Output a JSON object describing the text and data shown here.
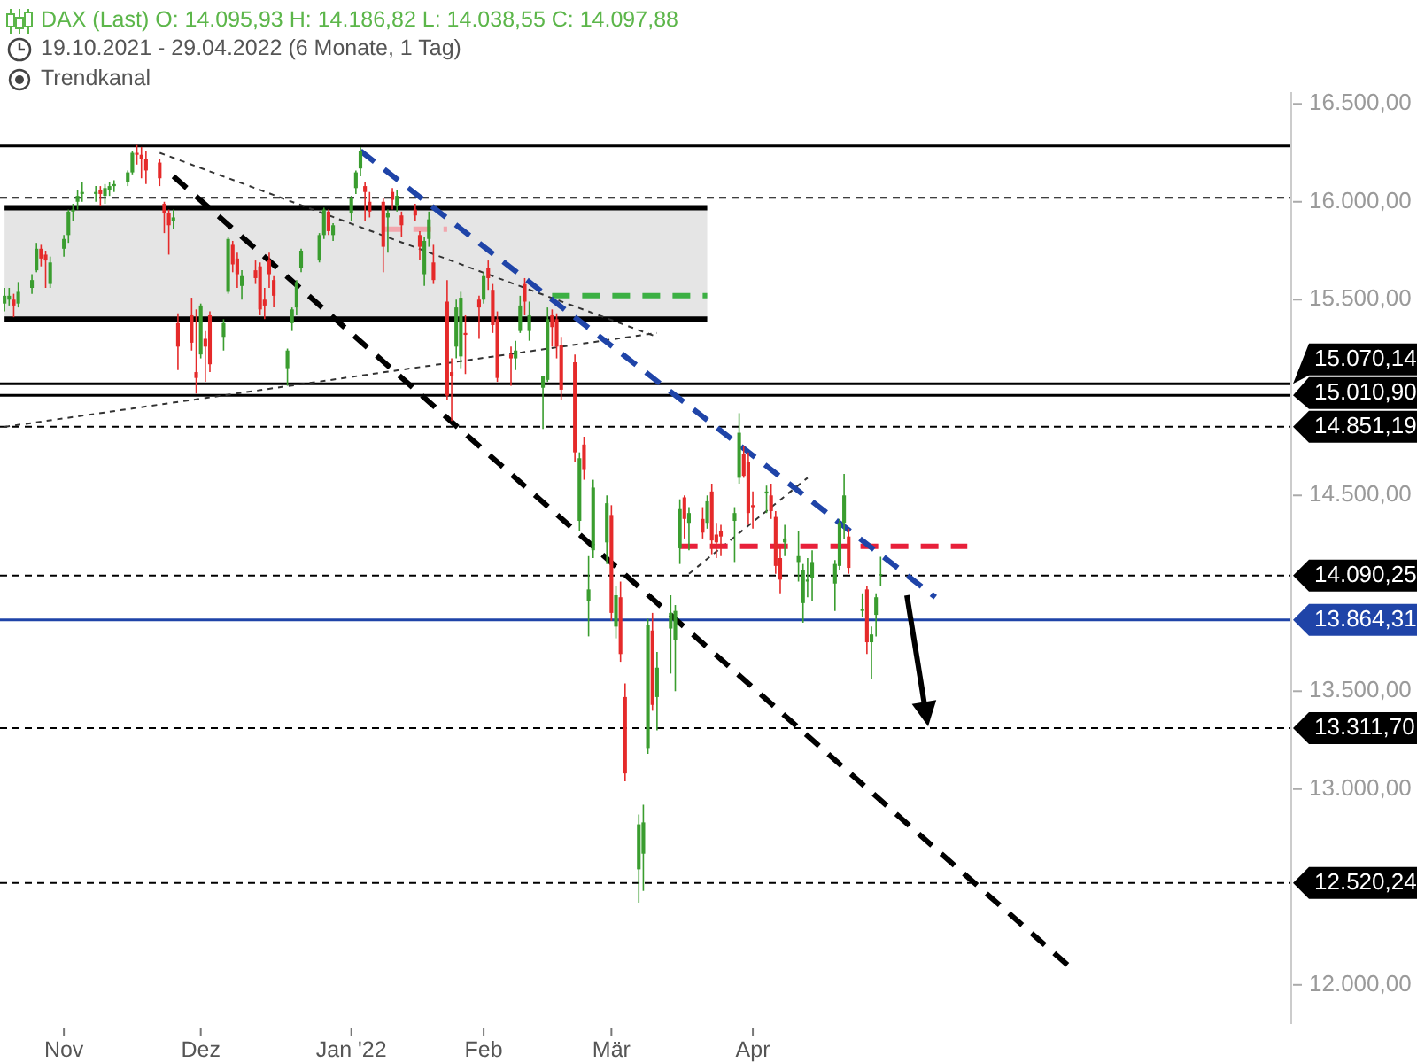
{
  "chart_data": {
    "type": "candlestick",
    "title": "DAX (Last) O: 14.095,93 H: 14.186,82 L: 14.038,55 C: 14.097,88",
    "subtitle": "19.10.2021 - 29.04.2022 (6 Monate, 1 Tag)",
    "annotations": [
      "Trendkanal"
    ],
    "x": [
      "2021-10-19",
      "2021-10-20",
      "2021-10-21",
      "2021-10-22",
      "2021-10-25",
      "2021-10-26",
      "2021-10-27",
      "2021-10-28",
      "2021-10-29",
      "2021-11-01",
      "2021-11-02",
      "2021-11-03",
      "2021-11-04",
      "2021-11-05",
      "2021-11-08",
      "2021-11-09",
      "2021-11-10",
      "2021-11-11",
      "2021-11-12",
      "2021-11-15",
      "2021-11-16",
      "2021-11-17",
      "2021-11-18",
      "2021-11-19",
      "2021-11-22",
      "2021-11-23",
      "2021-11-24",
      "2021-11-25",
      "2021-11-26",
      "2021-11-29",
      "2021-11-30",
      "2021-12-01",
      "2021-12-02",
      "2021-12-03",
      "2021-12-06",
      "2021-12-07",
      "2021-12-08",
      "2021-12-09",
      "2021-12-10",
      "2021-12-13",
      "2021-12-14",
      "2021-12-15",
      "2021-12-16",
      "2021-12-17",
      "2021-12-20",
      "2021-12-21",
      "2021-12-22",
      "2021-12-23",
      "2021-12-27",
      "2021-12-28",
      "2021-12-29",
      "2021-12-30",
      "2022-01-03",
      "2022-01-04",
      "2022-01-05",
      "2022-01-06",
      "2022-01-07",
      "2022-01-10",
      "2022-01-11",
      "2022-01-12",
      "2022-01-13",
      "2022-01-14",
      "2022-01-17",
      "2022-01-18",
      "2022-01-19",
      "2022-01-20",
      "2022-01-21",
      "2022-01-24",
      "2022-01-25",
      "2022-01-26",
      "2022-01-27",
      "2022-01-28",
      "2022-01-31",
      "2022-02-01",
      "2022-02-02",
      "2022-02-03",
      "2022-02-04",
      "2022-02-07",
      "2022-02-08",
      "2022-02-09",
      "2022-02-10",
      "2022-02-11",
      "2022-02-14",
      "2022-02-15",
      "2022-02-16",
      "2022-02-17",
      "2022-02-18",
      "2022-02-21",
      "2022-02-22",
      "2022-02-23",
      "2022-02-24",
      "2022-02-25",
      "2022-02-28",
      "2022-03-01",
      "2022-03-02",
      "2022-03-03",
      "2022-03-04",
      "2022-03-07",
      "2022-03-08",
      "2022-03-09",
      "2022-03-10",
      "2022-03-11",
      "2022-03-14",
      "2022-03-15",
      "2022-03-16",
      "2022-03-17",
      "2022-03-18",
      "2022-03-21",
      "2022-03-22",
      "2022-03-23",
      "2022-03-24",
      "2022-03-25",
      "2022-03-28",
      "2022-03-29",
      "2022-03-30",
      "2022-03-31",
      "2022-04-01",
      "2022-04-04",
      "2022-04-05",
      "2022-04-06",
      "2022-04-07",
      "2022-04-08",
      "2022-04-11",
      "2022-04-12",
      "2022-04-13",
      "2022-04-14",
      "2022-04-19",
      "2022-04-20",
      "2022-04-21",
      "2022-04-22",
      "2022-04-25",
      "2022-04-26",
      "2022-04-27",
      "2022-04-28",
      "2022-04-29"
    ],
    "ohlc": [
      [
        15480,
        15560,
        15440,
        15520
      ],
      [
        15500,
        15560,
        15470,
        15520
      ],
      [
        15500,
        15530,
        15410,
        15470
      ],
      [
        15480,
        15590,
        15460,
        15540
      ],
      [
        15560,
        15630,
        15530,
        15600
      ],
      [
        15650,
        15790,
        15640,
        15760
      ],
      [
        15760,
        15780,
        15670,
        15710
      ],
      [
        15730,
        15750,
        15560,
        15700
      ],
      [
        15580,
        15720,
        15560,
        15690
      ],
      [
        15760,
        15830,
        15720,
        15810
      ],
      [
        15830,
        15960,
        15790,
        15950
      ],
      [
        15950,
        15990,
        15900,
        15960
      ],
      [
        16000,
        16060,
        15960,
        16030
      ],
      [
        16040,
        16100,
        16000,
        16050
      ],
      [
        16040,
        16080,
        16000,
        16050
      ],
      [
        16060,
        16080,
        15980,
        16040
      ],
      [
        16030,
        16090,
        15990,
        16070
      ],
      [
        16060,
        16100,
        16030,
        16080
      ],
      [
        16080,
        16110,
        16050,
        16090
      ],
      [
        16100,
        16160,
        16080,
        16150
      ],
      [
        16150,
        16260,
        16140,
        16250
      ],
      [
        16250,
        16290,
        16190,
        16240
      ],
      [
        16240,
        16280,
        16120,
        16220
      ],
      [
        16220,
        16260,
        16090,
        16160
      ],
      [
        16200,
        16220,
        16080,
        16120
      ],
      [
        15990,
        16000,
        15840,
        15940
      ],
      [
        15940,
        15960,
        15730,
        15880
      ],
      [
        15900,
        15960,
        15860,
        15920
      ],
      [
        15380,
        15430,
        15140,
        15260
      ],
      [
        15420,
        15510,
        15240,
        15280
      ],
      [
        15130,
        15450,
        15020,
        15100
      ],
      [
        15220,
        15480,
        15200,
        15470
      ],
      [
        15300,
        15340,
        15080,
        15260
      ],
      [
        15420,
        15440,
        15130,
        15170
      ],
      [
        15310,
        15400,
        15240,
        15380
      ],
      [
        15540,
        15820,
        15530,
        15810
      ],
      [
        15780,
        15800,
        15640,
        15680
      ],
      [
        15710,
        15740,
        15560,
        15630
      ],
      [
        15570,
        15650,
        15500,
        15620
      ],
      [
        15650,
        15700,
        15580,
        15610
      ],
      [
        15670,
        15690,
        15420,
        15450
      ],
      [
        15500,
        15560,
        15400,
        15470
      ],
      [
        15700,
        15740,
        15560,
        15630
      ],
      [
        15600,
        15620,
        15460,
        15520
      ],
      [
        15150,
        15250,
        15060,
        15240
      ],
      [
        15380,
        15460,
        15340,
        15450
      ],
      [
        15460,
        15600,
        15420,
        15590
      ],
      [
        15660,
        15760,
        15640,
        15750
      ],
      [
        15700,
        15840,
        15690,
        15830
      ],
      [
        15830,
        15970,
        15810,
        15960
      ],
      [
        15950,
        15960,
        15830,
        15850
      ],
      [
        15830,
        15890,
        15800,
        15880
      ],
      [
        15940,
        16030,
        15900,
        16020
      ],
      [
        16070,
        16160,
        16040,
        16150
      ],
      [
        16170,
        16280,
        16130,
        16260
      ],
      [
        16080,
        16100,
        15900,
        16050
      ],
      [
        16000,
        16050,
        15920,
        15950
      ],
      [
        16000,
        16020,
        15640,
        15770
      ],
      [
        15920,
        15960,
        15740,
        15940
      ],
      [
        16050,
        16070,
        15960,
        16010
      ],
      [
        15980,
        16060,
        15950,
        16030
      ],
      [
        15930,
        15950,
        15820,
        15880
      ],
      [
        15960,
        15990,
        15900,
        15930
      ],
      [
        15830,
        15850,
        15700,
        15770
      ],
      [
        15630,
        15820,
        15570,
        15800
      ],
      [
        15810,
        15950,
        15770,
        15910
      ],
      [
        15690,
        15780,
        15580,
        15600
      ],
      [
        15490,
        15600,
        14990,
        15010
      ],
      [
        15130,
        15200,
        14880,
        15110
      ],
      [
        15260,
        15500,
        15200,
        15460
      ],
      [
        15210,
        15540,
        15150,
        15510
      ],
      [
        15330,
        15420,
        15120,
        15320
      ],
      [
        15500,
        15520,
        15300,
        15460
      ],
      [
        15500,
        15640,
        15480,
        15620
      ],
      [
        15660,
        15700,
        15550,
        15610
      ],
      [
        15550,
        15580,
        15330,
        15370
      ],
      [
        15400,
        15440,
        15080,
        15100
      ],
      [
        15220,
        15260,
        15060,
        15200
      ],
      [
        15200,
        15290,
        15140,
        15240
      ],
      [
        15340,
        15520,
        15330,
        15470
      ],
      [
        15580,
        15610,
        15420,
        15490
      ],
      [
        15340,
        15490,
        15290,
        15420
      ],
      [
        15050,
        15110,
        14840,
        15110
      ],
      [
        15090,
        15460,
        15080,
        15400
      ],
      [
        15420,
        15450,
        15260,
        15360
      ],
      [
        15400,
        15430,
        15200,
        15260
      ],
      [
        15270,
        15310,
        14990,
        15040
      ],
      [
        15180,
        15220,
        14670,
        14720
      ],
      [
        14370,
        14720,
        14320,
        14690
      ],
      [
        14760,
        14800,
        14580,
        14630
      ],
      [
        13960,
        14190,
        13780,
        14020
      ],
      [
        14220,
        14580,
        14180,
        14540
      ],
      [
        14260,
        14500,
        14150,
        14460
      ],
      [
        14400,
        14450,
        13860,
        13900
      ],
      [
        13830,
        14040,
        13770,
        13990
      ],
      [
        13980,
        14060,
        13650,
        13690
      ],
      [
        13470,
        13540,
        13040,
        13080
      ],
      [
        12590,
        12870,
        12420,
        12820
      ],
      [
        12670,
        12920,
        12480,
        12830
      ],
      [
        13210,
        13870,
        13180,
        13840
      ],
      [
        13810,
        13900,
        13400,
        13430
      ],
      [
        13470,
        13700,
        13300,
        13620
      ],
      [
        13820,
        13990,
        13590,
        13900
      ],
      [
        13760,
        13940,
        13500,
        13910
      ],
      [
        14230,
        14480,
        14150,
        14430
      ],
      [
        14490,
        14500,
        14280,
        14380
      ],
      [
        14360,
        14440,
        14220,
        14410
      ],
      [
        14380,
        14440,
        14280,
        14310
      ],
      [
        14360,
        14500,
        14330,
        14470
      ],
      [
        14520,
        14560,
        14200,
        14270
      ],
      [
        14300,
        14360,
        14180,
        14260
      ],
      [
        14320,
        14350,
        14190,
        14290
      ],
      [
        14370,
        14440,
        14160,
        14410
      ],
      [
        14590,
        14920,
        14560,
        14820
      ],
      [
        14710,
        14750,
        14590,
        14600
      ],
      [
        14670,
        14720,
        14350,
        14410
      ],
      [
        14450,
        14520,
        14330,
        14440
      ],
      [
        14510,
        14550,
        14410,
        14520
      ],
      [
        14500,
        14560,
        14380,
        14420
      ],
      [
        14390,
        14420,
        14100,
        14140
      ],
      [
        14180,
        14240,
        14000,
        14070
      ],
      [
        14260,
        14350,
        14190,
        14280
      ],
      [
        14160,
        14320,
        14060,
        14190
      ],
      [
        13950,
        14150,
        13850,
        14120
      ],
      [
        14060,
        14180,
        13980,
        14070
      ],
      [
        14080,
        14220,
        13960,
        14160
      ],
      [
        14050,
        14170,
        13910,
        14150
      ],
      [
        14140,
        14380,
        14120,
        14360
      ],
      [
        14360,
        14610,
        14280,
        14500
      ],
      [
        14290,
        14330,
        14100,
        14130
      ],
      [
        13910,
        14000,
        13880,
        13920
      ],
      [
        14020,
        14040,
        13690,
        13750
      ],
      [
        13750,
        13830,
        13560,
        13790
      ],
      [
        13890,
        14000,
        13780,
        13980
      ],
      [
        14095.93,
        14186.82,
        14038.55,
        14097.88
      ]
    ],
    "colors": [
      "#3a9d2f",
      "#3a9d2f",
      "#e52a2a",
      "#3a9d2f",
      "#3a9d2f",
      "#3a9d2f",
      "#e52a2a",
      "#e52a2a",
      "#3a9d2f",
      "#3a9d2f",
      "#3a9d2f",
      "#3a9d2f",
      "#3a9d2f",
      "#3a9d2f",
      "#3a9d2f",
      "#e52a2a",
      "#3a9d2f",
      "#3a9d2f",
      "#3a9d2f",
      "#3a9d2f",
      "#3a9d2f",
      "#e52a2a",
      "#e52a2a",
      "#e52a2a",
      "#e52a2a",
      "#e52a2a",
      "#e52a2a",
      "#3a9d2f",
      "#e52a2a",
      "#e52a2a",
      "#e52a2a",
      "#3a9d2f",
      "#e52a2a",
      "#e52a2a",
      "#3a9d2f",
      "#3a9d2f",
      "#e52a2a",
      "#e52a2a",
      "#3a9d2f",
      "#e52a2a",
      "#e52a2a",
      "#e52a2a",
      "#e52a2a",
      "#e52a2a",
      "#3a9d2f",
      "#3a9d2f",
      "#3a9d2f",
      "#3a9d2f",
      "#3a9d2f",
      "#3a9d2f",
      "#e52a2a",
      "#3a9d2f",
      "#3a9d2f",
      "#3a9d2f",
      "#3a9d2f",
      "#e52a2a",
      "#e52a2a",
      "#e52a2a",
      "#3a9d2f",
      "#e52a2a",
      "#3a9d2f",
      "#e52a2a",
      "#e52a2a",
      "#e52a2a",
      "#3a9d2f",
      "#3a9d2f",
      "#e52a2a",
      "#e52a2a",
      "#e52a2a",
      "#3a9d2f",
      "#3a9d2f",
      "#e52a2a",
      "#e52a2a",
      "#3a9d2f",
      "#e52a2a",
      "#e52a2a",
      "#e52a2a",
      "#e52a2a",
      "#3a9d2f",
      "#3a9d2f",
      "#e52a2a",
      "#3a9d2f",
      "#3a9d2f",
      "#3a9d2f",
      "#e52a2a",
      "#e52a2a",
      "#e52a2a",
      "#e52a2a",
      "#3a9d2f",
      "#e52a2a",
      "#3a9d2f",
      "#3a9d2f",
      "#3a9d2f",
      "#e52a2a",
      "#3a9d2f",
      "#e52a2a",
      "#e52a2a",
      "#3a9d2f",
      "#3a9d2f",
      "#3a9d2f",
      "#e52a2a",
      "#3a9d2f",
      "#3a9d2f",
      "#3a9d2f",
      "#3a9d2f",
      "#e52a2a",
      "#3a9d2f",
      "#e52a2a",
      "#3a9d2f",
      "#e52a2a",
      "#e52a2a",
      "#e52a2a",
      "#3a9d2f",
      "#3a9d2f",
      "#e52a2a",
      "#e52a2a",
      "#e52a2a",
      "#3a9d2f",
      "#e52a2a",
      "#e52a2a",
      "#e52a2a",
      "#3a9d2f",
      "#3a9d2f",
      "#3a9d2f",
      "#3a9d2f",
      "#3a9d2f",
      "#3a9d2f",
      "#3a9d2f",
      "#3a9d2f",
      "#e52a2a",
      "#3a9d2f",
      "#e52a2a",
      "#3a9d2f",
      "#3a9d2f",
      "#3a9d2f"
    ],
    "xlim": [
      "2021-10-18",
      "2022-07-28"
    ],
    "xticks": [
      {
        "value": "2021-11-01",
        "label": "Nov"
      },
      {
        "value": "2021-12-01",
        "label": "Dez"
      },
      {
        "value": "2022-01-03",
        "label": "Jan '22"
      },
      {
        "value": "2022-02-01",
        "label": "Feb"
      },
      {
        "value": "2022-03-01",
        "label": "Mär"
      },
      {
        "value": "2022-04-01",
        "label": "Apr"
      }
    ],
    "ylim": [
      11800,
      16560
    ],
    "yticks": [
      {
        "value": 12000,
        "label": "12.000,00"
      },
      {
        "value": 13000,
        "label": "13.000,00"
      },
      {
        "value": 13500,
        "label": "13.500,00"
      },
      {
        "value": 14500,
        "label": "14.500,00"
      },
      {
        "value": 15500,
        "label": "15.500,00"
      },
      {
        "value": 16000,
        "label": "16.000,00"
      },
      {
        "value": 16500,
        "label": "16.500,00"
      }
    ],
    "series": [
      {
        "type": "line",
        "x": [
          "2021-10-19",
          "2022-03-22"
        ],
        "values": [
          15970,
          15970
        ],
        "lower": [
          15400,
          15400
        ],
        "upper": [
          15970,
          15970
        ],
        "color": "#000000",
        "line_style": "solid"
      },
      {
        "type": "line",
        "x": [
          "2021-10-19",
          "2022-03-22"
        ],
        "values": [
          15400,
          15400
        ],
        "color": "#000000",
        "line_style": "solid"
      },
      {
        "type": "line",
        "x": [
          "2021-11-22",
          "2022-03-11"
        ],
        "values": [
          16250,
          15310
        ],
        "color": "#333333",
        "line_style": "dotted"
      },
      {
        "type": "line",
        "x": [
          "2021-10-19",
          "2022-03-11"
        ],
        "values": [
          14850,
          15330
        ],
        "color": "#333333",
        "line_style": "dotted"
      },
      {
        "type": "line",
        "x": [
          "2022-03-18",
          "2022-04-13"
        ],
        "values": [
          14100,
          14590
        ],
        "color": "#333333",
        "line_style": "dotted"
      },
      {
        "type": "line",
        "x": [
          "2022-01-10",
          "2022-01-24"
        ],
        "values": [
          15860,
          15860
        ],
        "color": "#f2a6ad",
        "line_style": "dashed"
      },
      {
        "type": "line",
        "x": [
          "2022-02-16",
          "2022-03-22"
        ],
        "values": [
          15520,
          15520
        ],
        "color": "#3cb043",
        "line_style": "dashed"
      },
      {
        "type": "line",
        "x": [
          "2022-03-16",
          "2022-05-18"
        ],
        "values": [
          14240,
          14240
        ],
        "color": "#e8203a",
        "line_style": "dashed"
      },
      {
        "type": "line",
        "x": [
          "2021-11-25",
          "2022-06-10"
        ],
        "values": [
          16130,
          12080
        ],
        "color": "#000000",
        "line_style": "dashed"
      },
      {
        "type": "line",
        "x": [
          "2022-01-05",
          "2022-05-11"
        ],
        "values": [
          16260,
          13980
        ],
        "color": "#1f44a8",
        "line_style": "dashed"
      }
    ],
    "ref_lines": [
      {
        "axis": "y",
        "value": 16285,
        "color": "#000000",
        "line_style": "solid"
      },
      {
        "axis": "y",
        "value": 16020,
        "color": "#000000",
        "line_style": "dashed"
      },
      {
        "axis": "y",
        "value": 15070.14,
        "label": "15.070,14",
        "color": "#000000",
        "line_style": "solid"
      },
      {
        "axis": "y",
        "value": 15010.9,
        "label": "15.010,90",
        "color": "#000000",
        "line_style": "solid"
      },
      {
        "axis": "y",
        "value": 14851.19,
        "label": "14.851,19",
        "color": "#000000",
        "line_style": "dashed"
      },
      {
        "axis": "y",
        "value": 14090.25,
        "label": "14.090,25",
        "color": "#000000",
        "line_style": "dashed"
      },
      {
        "axis": "y",
        "value": 13864.31,
        "label": "13.864,31",
        "color": "#1f44a8",
        "line_style": "solid"
      },
      {
        "axis": "y",
        "value": 13311.7,
        "label": "13.311,70",
        "color": "#000000",
        "line_style": "dashed"
      },
      {
        "axis": "y",
        "value": 12520.24,
        "label": "12.520,24",
        "color": "#000000",
        "line_style": "dashed"
      }
    ]
  }
}
